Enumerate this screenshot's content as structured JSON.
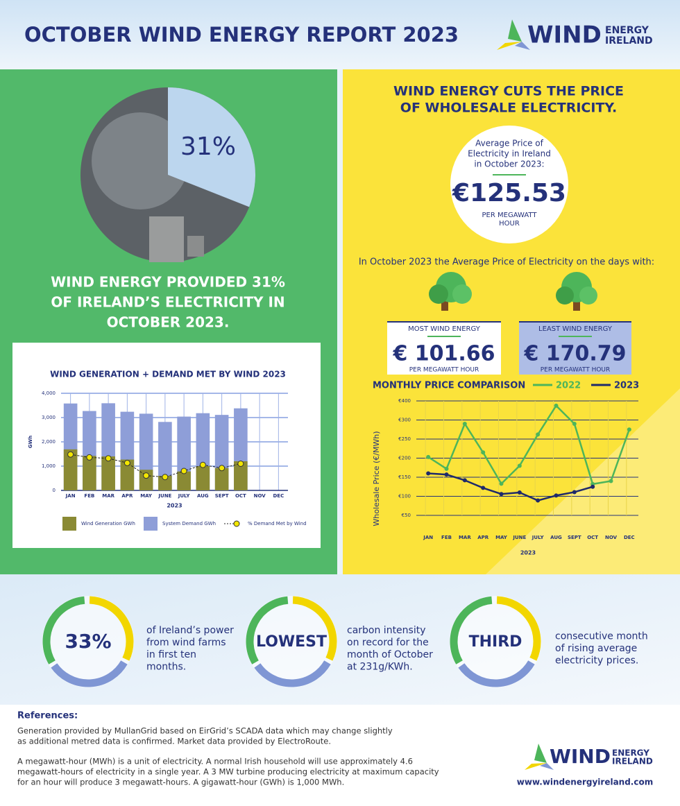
{
  "header": {
    "title": "OCTOBER WIND ENERGY REPORT 2023",
    "logo": {
      "word": "WIND",
      "line1": "ENERGY",
      "line2": "IRELAND"
    }
  },
  "green_panel": {
    "headline": [
      "WIND ENERGY PROVIDED 31%",
      "OF IRELAND’S ELECTRICITY IN",
      "OCTOBER 2023."
    ]
  },
  "yellow_panel": {
    "title": [
      "WIND ENERGY CUTS THE PRICE",
      "OF WHOLESALE ELECTRICITY."
    ],
    "average": {
      "label": [
        "Average Price of",
        "Electricity in Ireland",
        "in October 2023:"
      ],
      "value": "€125.53",
      "unit": [
        "PER MEGAWATT",
        "HOUR"
      ]
    },
    "intro": "In October 2023 the Average Price of Electricity on the days with:",
    "most": {
      "label": "MOST WIND ENERGY",
      "value": "€ 101.66",
      "unit": "PER MEGAWATT HOUR"
    },
    "least": {
      "label": "LEAST WIND ENERGY",
      "value": "€ 170.79",
      "unit": "PER MEGAWATT HOUR"
    }
  },
  "stats": [
    {
      "value": "33%",
      "text": [
        "of Ireland’s power",
        "from wind farms",
        "in first ten",
        "months."
      ]
    },
    {
      "value": "LOWEST",
      "text": [
        "carbon intensity",
        "on record for the",
        "month of October",
        "at 231g/KWh."
      ]
    },
    {
      "value": "THIRD",
      "text": [
        "consecutive month",
        "of rising average",
        "electricity prices."
      ]
    }
  ],
  "references": {
    "heading": "References:",
    "paragraphs": [
      [
        "Generation provided by MullanGrid based on EirGrid’s SCADA data which may change slightly",
        "as additional metred data is confirmed. Market data provided by ElectroRoute."
      ],
      [
        "A megawatt-hour (MWh) is a unit of electricity. A normal Irish household will use approximately 4.6",
        "megawatt-hours of electricity in a single year. A 3 MW turbine producing electricity at maximum capacity",
        "for an hour will produce 3 megawatt-hours. A gigawatt-hour (GWh) is 1,000 MWh."
      ]
    ]
  },
  "footer": {
    "logo": {
      "word": "WIND",
      "line1": "ENERGY",
      "line2": "IRELAND"
    },
    "url": "www.windenergyireland.com"
  },
  "chart_data": [
    {
      "type": "pie",
      "values": [
        31
      ],
      "value_labels": [
        "31%"
      ],
      "color": "#bcd6ee"
    },
    {
      "type": "bar",
      "title": "WIND GENERATION + DEMAND MET BY WIND 2023",
      "y_label": "GWh",
      "x_label": "2023",
      "categories": [
        "JAN",
        "FEB",
        "MAR",
        "APR",
        "MAY",
        "JUNE",
        "JULY",
        "AUG",
        "SEPT",
        "OCT",
        "NOV",
        "DEC"
      ],
      "series": [
        {
          "name": "Wind Generation GWh",
          "color": "#8a8a34",
          "values": [
            1690,
            1420,
            1400,
            1270,
            850,
            600,
            780,
            1000,
            920,
            1200,
            null,
            null
          ]
        },
        {
          "name": "System Demand GWh",
          "color": "#8e9ed8",
          "values": [
            3580,
            3270,
            3590,
            3240,
            3160,
            2820,
            3040,
            3180,
            3110,
            3380,
            null,
            null
          ]
        },
        {
          "name": "% Demand Met by Wind",
          "type": "line",
          "color": "#f2e600",
          "values": [
            1480,
            1360,
            1320,
            1130,
            610,
            550,
            800,
            1050,
            920,
            1100,
            null,
            null
          ]
        }
      ],
      "ylim": [
        0,
        4000
      ],
      "yticks": [
        0,
        {
          "value": 1000,
          "label": "1,000"
        },
        {
          "value": 2000,
          "label": "2,000"
        },
        {
          "value": 3000,
          "label": "3,000"
        },
        {
          "value": 4000,
          "label": "4,000"
        }
      ],
      "grid": true
    },
    {
      "type": "line",
      "title": "MONTHLY PRICE COMPARISON",
      "y_label": "Wholesale Price (€/MWh)",
      "x_label": "2023",
      "categories": [
        "JAN",
        "FEB",
        "MAR",
        "APR",
        "MAY",
        "JUNE",
        "JULY",
        "AUG",
        "SEPT",
        "OCT",
        "NOV",
        "DEC"
      ],
      "series": [
        {
          "name": "2022",
          "color": "#4db55a",
          "values": [
            203,
            172,
            290,
            215,
            133,
            180,
            262,
            375,
            290,
            132,
            140,
            275
          ]
        },
        {
          "name": "2023",
          "color": "#1f2a6b",
          "values": [
            160,
            157,
            142,
            122,
            106,
            110,
            89,
            102,
            111,
            125,
            null,
            null
          ]
        }
      ],
      "ylim": [
        50,
        400
      ],
      "yticks": [
        {
          "value": 50,
          "label": "€50"
        },
        {
          "value": 100,
          "label": "€100"
        },
        {
          "value": 150,
          "label": "€150"
        },
        {
          "value": 200,
          "label": "€200"
        },
        {
          "value": 250,
          "label": "€250"
        },
        {
          "value": 300,
          "label": "€300"
        },
        {
          "value": 400,
          "label": "€400"
        }
      ],
      "grid": true
    }
  ]
}
